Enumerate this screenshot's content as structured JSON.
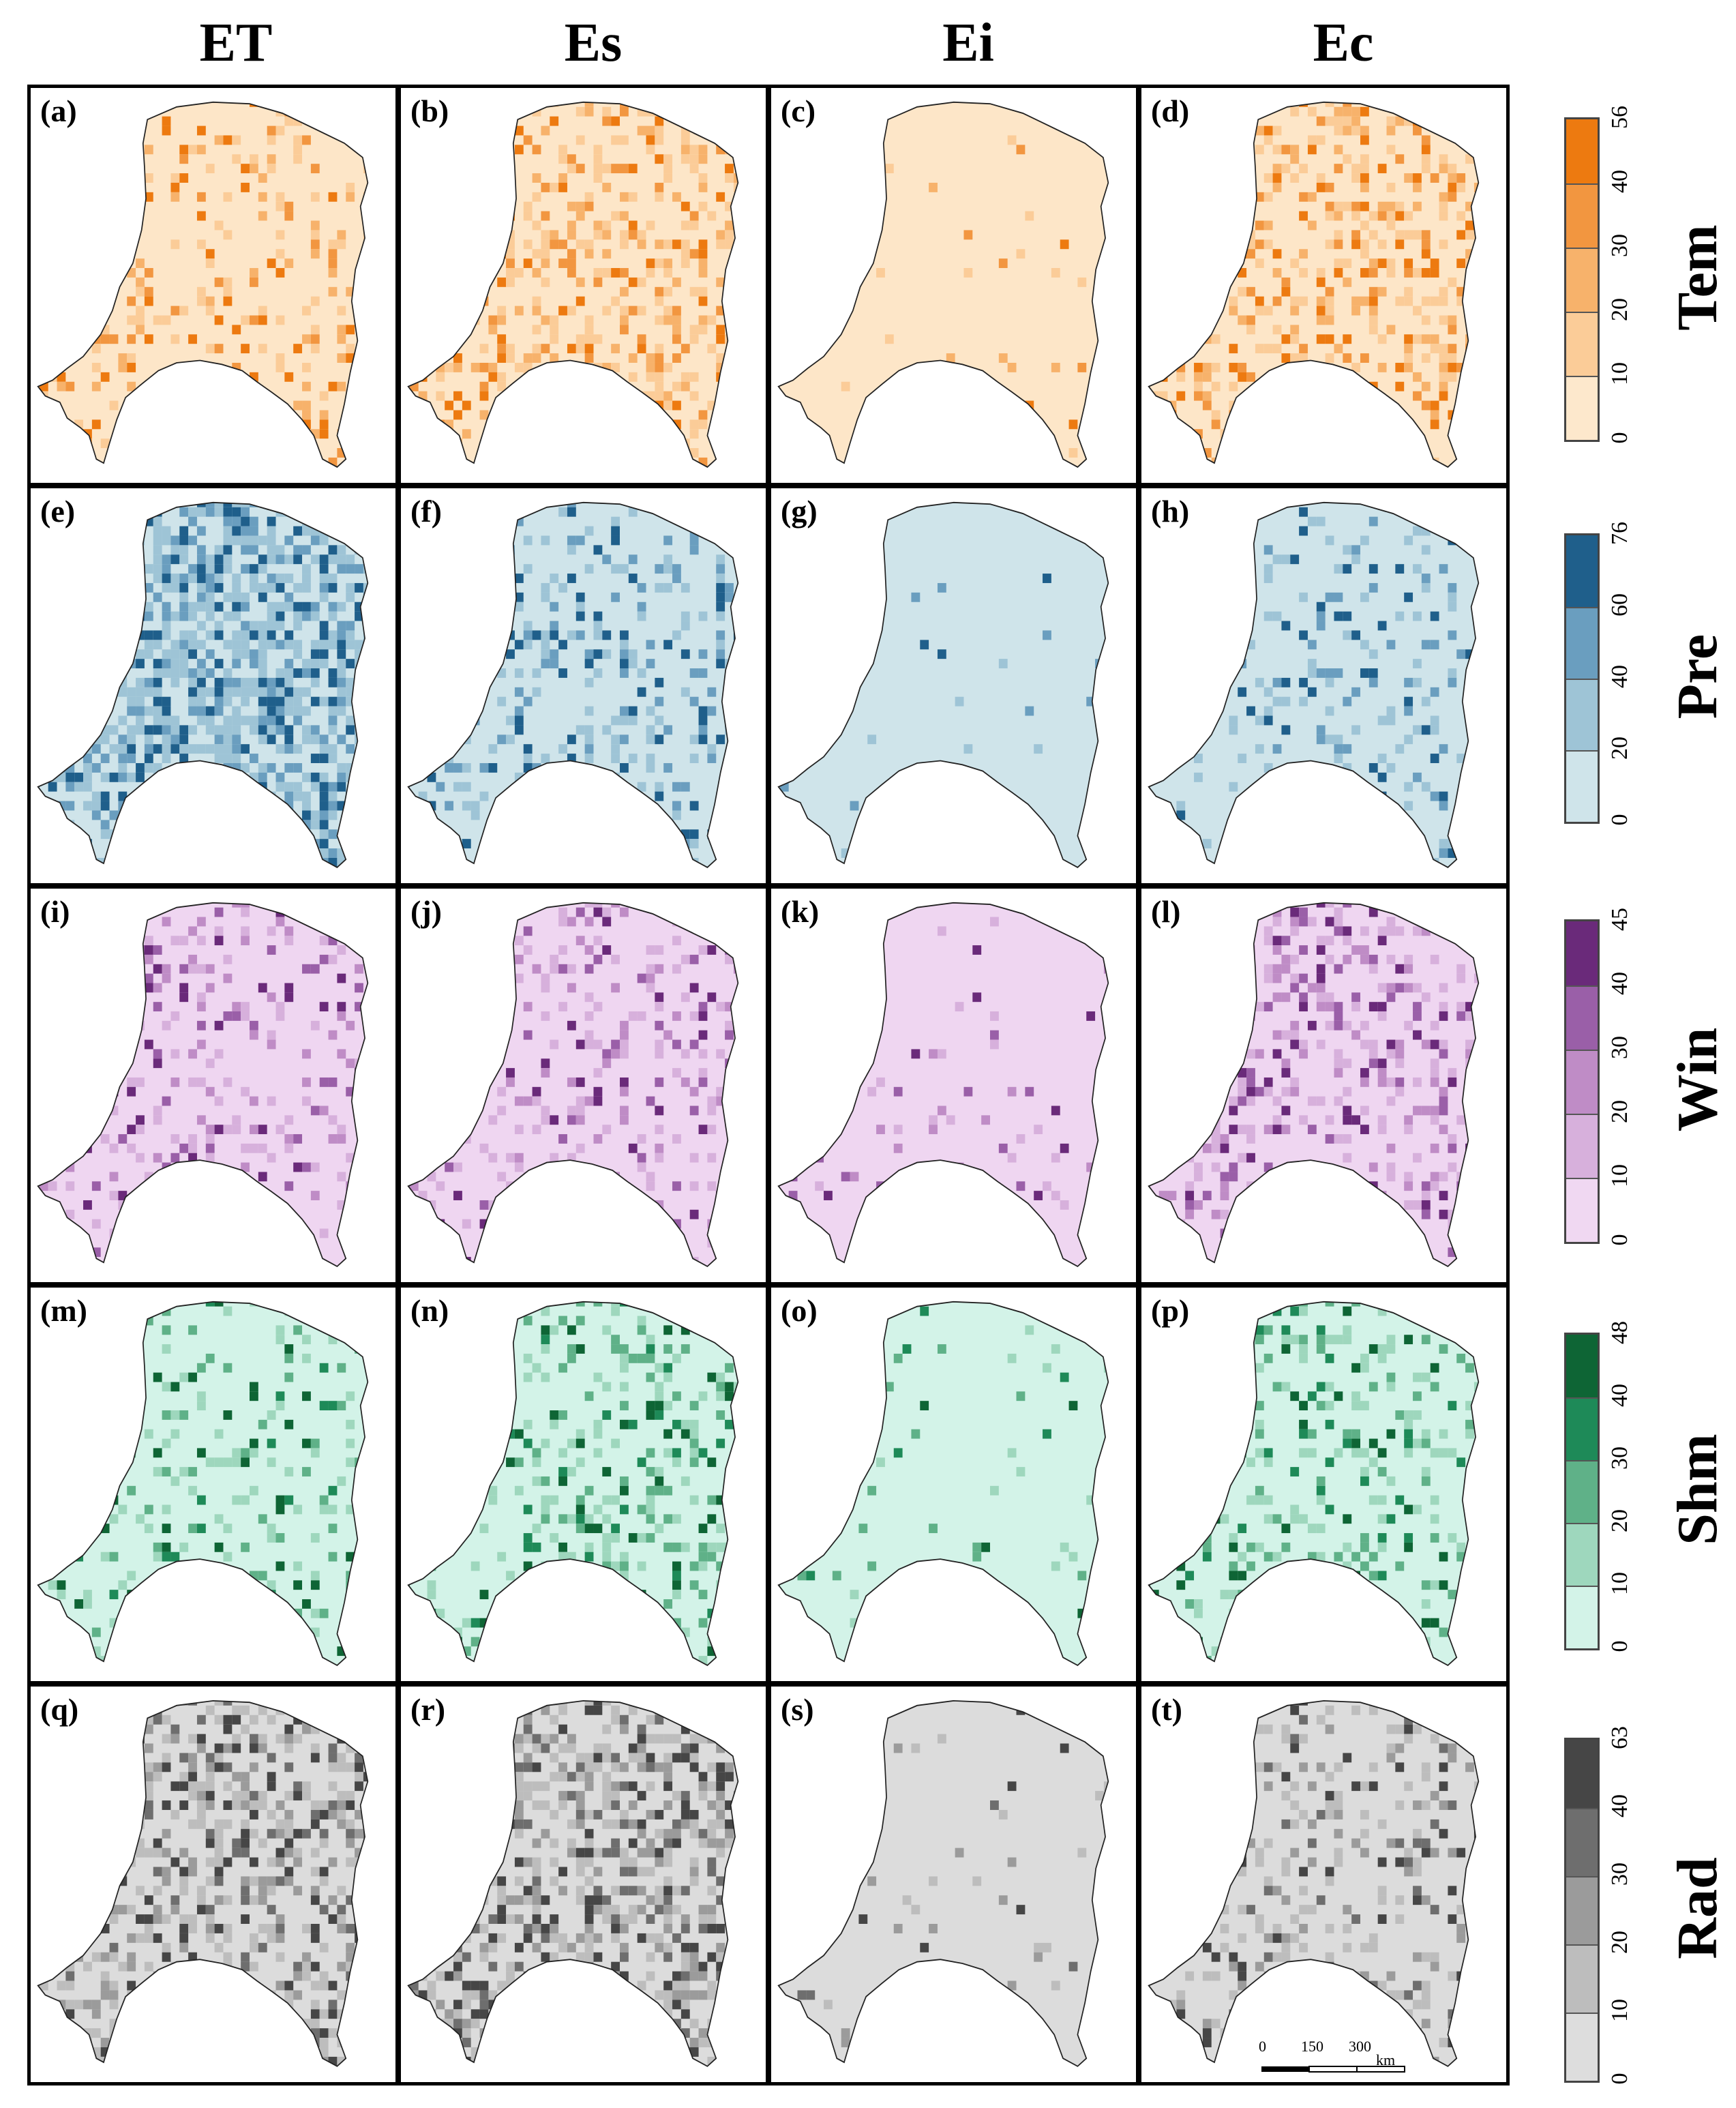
{
  "columns": [
    "ET",
    "Es",
    "Ei",
    "Ec"
  ],
  "rows": [
    {
      "variable": "Tem",
      "panels": [
        "(a)",
        "(b)",
        "(c)",
        "(d)"
      ],
      "legend_ticks": [
        "0",
        "10",
        "20",
        "30",
        "40",
        "56"
      ],
      "colors": [
        "#fde8cc",
        "#fbcc98",
        "#f7b26b",
        "#f29640",
        "#ed7a10"
      ],
      "base_color": "#fde6c8",
      "intensity": [
        0.22,
        0.34,
        0.03,
        0.32
      ]
    },
    {
      "variable": "Pre",
      "panels": [
        "(e)",
        "(f)",
        "(g)",
        "(h)"
      ],
      "legend_ticks": [
        "0",
        "20",
        "40",
        "60",
        "76"
      ],
      "colors": [
        "#cfe4ea",
        "#9ec4d6",
        "#6a9ebf",
        "#1f5f8b"
      ],
      "base_color": "#cfe4ea",
      "intensity": [
        0.62,
        0.22,
        0.02,
        0.16
      ]
    },
    {
      "variable": "Win",
      "panels": [
        "(i)",
        "(j)",
        "(k)",
        "(l)"
      ],
      "legend_ticks": [
        "0",
        "10",
        "20",
        "30",
        "40",
        "45"
      ],
      "colors": [
        "#f0d8f2",
        "#d7b0dc",
        "#bf8cc6",
        "#9a5fa8",
        "#6a2a7a"
      ],
      "base_color": "#efd6f1",
      "intensity": [
        0.22,
        0.22,
        0.05,
        0.34
      ]
    },
    {
      "variable": "Shm",
      "panels": [
        "(m)",
        "(n)",
        "(o)",
        "(p)"
      ],
      "legend_ticks": [
        "0",
        "10",
        "20",
        "30",
        "40",
        "48"
      ],
      "colors": [
        "#d3f3e8",
        "#9ed7bd",
        "#5fb188",
        "#1e8a58",
        "#0e6535"
      ],
      "base_color": "#d3f3e8",
      "intensity": [
        0.2,
        0.28,
        0.04,
        0.24
      ]
    },
    {
      "variable": "Rad",
      "panels": [
        "(q)",
        "(r)",
        "(s)",
        "(t)"
      ],
      "legend_ticks": [
        "0",
        "10",
        "20",
        "30",
        "40",
        "63"
      ],
      "colors": [
        "#dddddd",
        "#bdbdbd",
        "#9b9b9b",
        "#6e6e6e",
        "#464646"
      ],
      "base_color": "#dcdcdc",
      "intensity": [
        0.4,
        0.52,
        0.03,
        0.24
      ]
    }
  ],
  "scale_bar": {
    "ticks": [
      "0",
      "150",
      "300"
    ],
    "unit": "km"
  }
}
